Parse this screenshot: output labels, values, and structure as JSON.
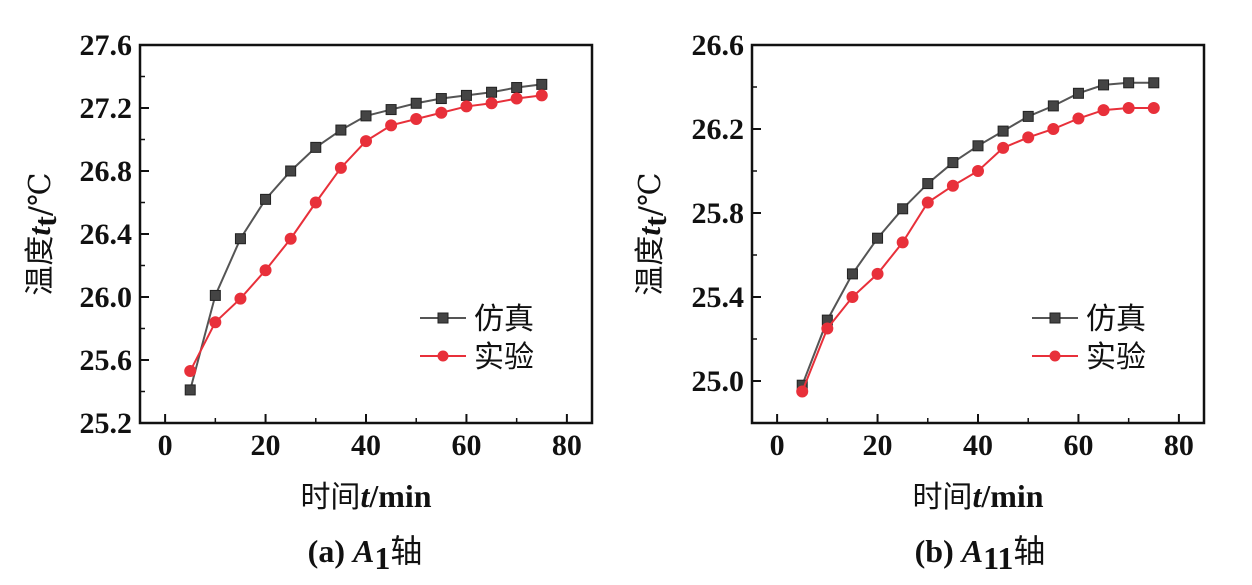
{
  "chart_data": [
    {
      "type": "line",
      "caption": {
        "prefix": "(a) ",
        "var": "A",
        "sub": "1",
        "suffix": "轴"
      },
      "xlabel": {
        "cjk": "时间",
        "var": "t",
        "unit": "/min"
      },
      "ylabel": {
        "cjk": "温度",
        "var": "t",
        "sub": "t",
        "unit": "/℃"
      },
      "xlim": [
        -5,
        85
      ],
      "ylim": [
        25.2,
        27.6
      ],
      "xticks": [
        0,
        20,
        40,
        60,
        80
      ],
      "yticks": [
        25.2,
        25.6,
        26.0,
        26.4,
        26.8,
        27.2,
        27.6
      ],
      "ytick_labels": [
        "25.2",
        "25.6",
        "26.0",
        "26.4",
        "26.8",
        "27.2",
        "27.6"
      ],
      "legend_position": "right",
      "x": [
        5,
        10,
        15,
        20,
        25,
        30,
        35,
        40,
        45,
        50,
        55,
        60,
        65,
        70,
        75
      ],
      "series": [
        {
          "name": "仿真",
          "marker": "square",
          "color": "#555555",
          "values": [
            25.41,
            26.01,
            26.37,
            26.62,
            26.8,
            26.95,
            27.06,
            27.15,
            27.19,
            27.23,
            27.26,
            27.28,
            27.3,
            27.33,
            27.35
          ]
        },
        {
          "name": "实验",
          "marker": "circle",
          "color": "#e8303a",
          "values": [
            25.53,
            25.84,
            25.99,
            26.17,
            26.37,
            26.6,
            26.82,
            26.99,
            27.09,
            27.13,
            27.17,
            27.21,
            27.23,
            27.26,
            27.28
          ]
        }
      ]
    },
    {
      "type": "line",
      "caption": {
        "prefix": "(b) ",
        "var": "A",
        "sub": "11",
        "suffix": "轴"
      },
      "xlabel": {
        "cjk": "时间",
        "var": "t",
        "unit": "/min"
      },
      "ylabel": {
        "cjk": "温度",
        "var": "t",
        "sub": "t",
        "unit": "/℃"
      },
      "xlim": [
        -5,
        85
      ],
      "ylim": [
        24.8,
        26.6
      ],
      "xticks": [
        0,
        20,
        40,
        60,
        80
      ],
      "yticks": [
        25.0,
        25.4,
        25.8,
        26.2,
        26.6
      ],
      "ytick_labels": [
        "25.0",
        "25.4",
        "25.8",
        "26.2",
        "26.6"
      ],
      "legend_position": "right",
      "x": [
        5,
        10,
        15,
        20,
        25,
        30,
        35,
        40,
        45,
        50,
        55,
        60,
        65,
        70,
        75
      ],
      "series": [
        {
          "name": "仿真",
          "marker": "square",
          "color": "#555555",
          "values": [
            24.98,
            25.29,
            25.51,
            25.68,
            25.82,
            25.94,
            26.04,
            26.12,
            26.19,
            26.26,
            26.31,
            26.37,
            26.41,
            26.42,
            26.42
          ]
        },
        {
          "name": "实验",
          "marker": "circle",
          "color": "#e8303a",
          "values": [
            24.95,
            25.25,
            25.4,
            25.51,
            25.66,
            25.85,
            25.93,
            26.0,
            26.11,
            26.16,
            26.2,
            26.25,
            26.29,
            26.3,
            26.3
          ]
        }
      ]
    }
  ]
}
